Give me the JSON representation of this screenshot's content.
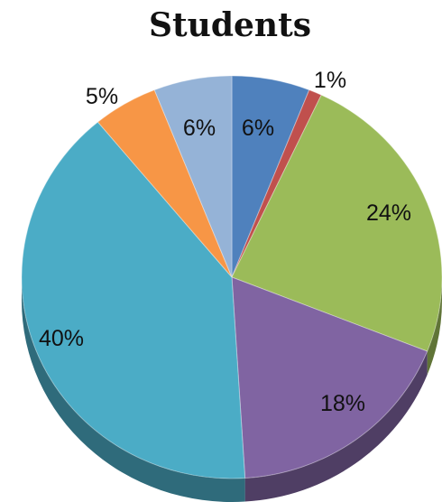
{
  "chart_data": {
    "type": "pie",
    "title": "Students",
    "slices": [
      {
        "label": "6%",
        "value": 6,
        "color": "#4F81BD"
      },
      {
        "label": "1%",
        "value": 1,
        "color": "#C0504D"
      },
      {
        "label": "24%",
        "value": 24,
        "color": "#9BBB59"
      },
      {
        "label": "18%",
        "value": 18,
        "color": "#8064A2"
      },
      {
        "label": "40%",
        "value": 40,
        "color": "#4BACC6"
      },
      {
        "label": "5%",
        "value": 5,
        "color": "#F79646"
      },
      {
        "label": "6%",
        "value": 6,
        "color": "#95B3D7"
      }
    ],
    "start": "12 o'clock",
    "direction": "clockwise",
    "style": "3d-tilted",
    "legend": "none"
  }
}
